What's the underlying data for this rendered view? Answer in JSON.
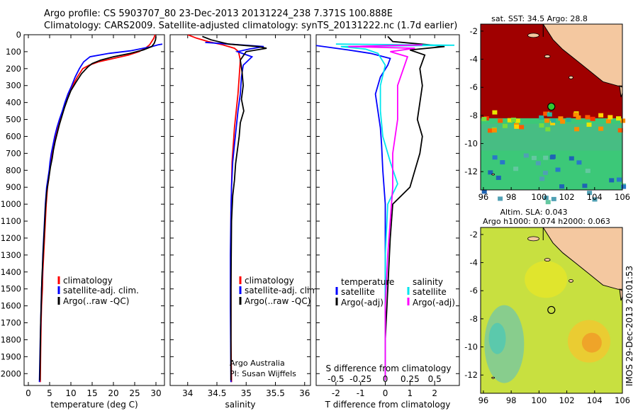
{
  "title": {
    "line1": "Argo profile: CS 5903707_80 23-Dec-2013 20131224_238 7.371S 100.888E",
    "line2": "Climatology: CARS2009. Satellite-adjusted climatology: synTS_20131222.nc (1.7d earlier)"
  },
  "colors": {
    "climatology": "#ff0000",
    "satellite": "#0000ff",
    "argo": "#000000",
    "satellite_diff": "#00e5ee",
    "argo_diff_salinity": "#ff00ff",
    "land": "#f4c8a0",
    "sst_warm": "#a00000",
    "sla_field": "#c8e040"
  },
  "side_text": "IMOS 29-Dec-2013 20:01:53",
  "chart_data": [
    {
      "id": "temperature",
      "type": "line",
      "xlabel": "temperature (deg C)",
      "ylabel": "",
      "xlim": [
        -1,
        32
      ],
      "ylim": [
        2070,
        0
      ],
      "xticks": [
        0,
        5,
        10,
        15,
        20,
        25,
        30
      ],
      "yticks": [
        0,
        100,
        200,
        300,
        400,
        500,
        600,
        700,
        800,
        900,
        1000,
        1100,
        1200,
        1300,
        1400,
        1500,
        1600,
        1700,
        1800,
        1900,
        2000
      ],
      "legend": [
        "climatology",
        "satellite-adj. clim.",
        "Argo(..raw -QC)"
      ],
      "legend_position": "lower-center",
      "series": [
        {
          "name": "climatology",
          "color": "#ff0000",
          "x": [
            29.8,
            29.5,
            29.0,
            28.5,
            27.5,
            26.0,
            23.5,
            20.0,
            16.5,
            14.3,
            12.8,
            11.5,
            10.4,
            9.5,
            8.8,
            8.2,
            7.5,
            6.9,
            6.4,
            6.0,
            5.6,
            5.3,
            5.0,
            4.8,
            4.5,
            4.2,
            4.0,
            3.8,
            3.6,
            3.4,
            3.3,
            3.1,
            3.0,
            2.9,
            2.8
          ],
          "y": [
            0,
            20,
            40,
            60,
            80,
            100,
            120,
            140,
            160,
            180,
            200,
            250,
            300,
            350,
            400,
            450,
            500,
            550,
            600,
            650,
            700,
            750,
            800,
            850,
            900,
            1000,
            1100,
            1200,
            1300,
            1400,
            1500,
            1600,
            1700,
            1850,
            2050
          ]
        },
        {
          "name": "satellite-adj. clim.",
          "color": "#0000ff",
          "x": [
            31.5,
            30.5,
            29.0,
            27.0,
            24.0,
            19.0,
            14.5,
            13.0,
            12.0,
            11.0,
            10.2,
            9.3,
            8.6,
            8.0,
            7.3,
            6.7,
            6.2,
            5.8,
            5.4,
            5.1,
            4.9,
            4.6,
            4.3,
            4.0,
            3.8,
            3.6,
            3.4,
            3.3,
            3.1,
            3.0,
            2.8,
            2.6
          ],
          "y": [
            55,
            60,
            70,
            80,
            95,
            110,
            130,
            160,
            200,
            250,
            300,
            350,
            400,
            450,
            500,
            550,
            600,
            650,
            700,
            750,
            800,
            850,
            900,
            1000,
            1100,
            1200,
            1300,
            1400,
            1500,
            1600,
            1800,
            2050
          ]
        },
        {
          "name": "Argo(..raw -QC)",
          "color": "#000000",
          "x": [
            30.0,
            29.9,
            29.6,
            29.0,
            27.0,
            24.0,
            20.0,
            17.0,
            15.0,
            14.0,
            12.5,
            11.2,
            10.0,
            9.2,
            8.5,
            7.9,
            7.3,
            6.8,
            6.3,
            5.9,
            5.6,
            5.2,
            4.9,
            4.6,
            4.3,
            4.0,
            3.8,
            3.6,
            3.4,
            3.2,
            3.1,
            2.9,
            2.7
          ],
          "y": [
            10,
            30,
            50,
            70,
            90,
            110,
            130,
            150,
            170,
            190,
            230,
            280,
            330,
            380,
            430,
            480,
            530,
            580,
            630,
            680,
            730,
            780,
            830,
            880,
            930,
            1030,
            1130,
            1230,
            1330,
            1430,
            1530,
            1700,
            2040
          ]
        }
      ]
    },
    {
      "id": "salinity",
      "type": "line",
      "xlabel": "salinity",
      "ylabel": "",
      "xlim": [
        33.7,
        36.1
      ],
      "ylim": [
        2070,
        0
      ],
      "xticks": [
        34,
        34.5,
        35,
        35.5,
        36
      ],
      "legend": [
        "climatology",
        "satellite-adj. clim.",
        "Argo(..raw -QC)"
      ],
      "legend_position": "lower-right",
      "annotations": [
        "Argo Australia",
        "PI: Susan Wijffels"
      ],
      "series": [
        {
          "name": "climatology",
          "color": "#ff0000",
          "x": [
            34.0,
            34.15,
            34.35,
            34.6,
            34.8,
            34.87,
            34.9,
            34.88,
            34.86,
            34.83,
            34.8,
            34.78,
            34.76,
            34.75,
            34.74,
            34.74,
            34.74,
            34.74,
            34.75
          ],
          "y": [
            0,
            20,
            40,
            60,
            80,
            100,
            150,
            250,
            350,
            450,
            550,
            650,
            750,
            900,
            1050,
            1250,
            1500,
            1800,
            2050
          ]
        },
        {
          "name": "satellite-adj. clim.",
          "color": "#0000ff",
          "x": [
            34.3,
            34.7,
            35.3,
            35.05,
            34.85,
            35.1,
            34.95,
            34.92,
            34.9,
            34.86,
            34.83,
            34.8,
            34.77,
            34.75,
            34.74,
            34.73,
            34.73,
            34.74
          ],
          "y": [
            45,
            55,
            70,
            85,
            100,
            130,
            180,
            250,
            350,
            450,
            550,
            650,
            750,
            900,
            1050,
            1300,
            1600,
            2050
          ]
        },
        {
          "name": "Argo(..raw -QC)",
          "color": "#000000",
          "x": [
            34.25,
            34.4,
            34.7,
            35.2,
            35.35,
            35.0,
            34.9,
            34.93,
            34.95,
            34.92,
            34.96,
            34.9,
            34.88,
            34.85,
            34.82,
            34.8,
            34.77,
            34.75,
            34.74,
            34.74
          ],
          "y": [
            10,
            30,
            55,
            70,
            80,
            100,
            150,
            220,
            300,
            380,
            450,
            520,
            600,
            680,
            760,
            860,
            950,
            1100,
            1500,
            2040
          ]
        }
      ]
    },
    {
      "id": "difference",
      "type": "line",
      "xlabel": "T difference from climatology",
      "xlabel_top": "S difference from climatology",
      "ylabel": "",
      "xlim": [
        -2.8,
        3.0
      ],
      "ylim": [
        2070,
        0
      ],
      "xticks": [
        -2,
        -1,
        0,
        1,
        2
      ],
      "xticks_top": [
        "-0.5",
        "-0.25",
        "0",
        "0.25",
        "0.5"
      ],
      "legend": [
        "temperature",
        "satellite",
        "Argo(-adj)",
        "salinity",
        "satellite",
        "Argo(-adj)"
      ],
      "legend_position": "lower-center",
      "series": [
        {
          "name": "satellite",
          "color": "#0000ff",
          "x": [
            -3.0,
            -1.5,
            -0.6,
            0.2,
            0.1,
            -0.2,
            -0.4,
            -0.3,
            -0.2,
            -0.15,
            -0.1,
            0.0,
            0.0,
            0.0,
            0.0
          ],
          "y": [
            60,
            90,
            110,
            140,
            180,
            250,
            350,
            450,
            550,
            650,
            800,
            1000,
            1300,
            1600,
            2040
          ]
        },
        {
          "name": "Argo(-adj)",
          "color": "#000000",
          "x": [
            0.1,
            0.3,
            1.8,
            2.4,
            1.0,
            1.6,
            1.4,
            1.5,
            1.4,
            1.3,
            1.5,
            1.4,
            1.2,
            1.0,
            0.3,
            0.2,
            0.1,
            0.0,
            0.0
          ],
          "y": [
            10,
            40,
            60,
            70,
            90,
            120,
            200,
            300,
            400,
            500,
            600,
            700,
            800,
            900,
            1000,
            1200,
            1500,
            1800,
            2040
          ]
        },
        {
          "name": "satellite",
          "color": "#00e5ee",
          "x": [
            -2.0,
            2.8,
            -1.8,
            -0.8,
            -0.3,
            0.0,
            -0.2,
            -0.2,
            -0.1,
            0.2,
            0.5,
            0.1,
            0.0,
            0.0,
            0.0
          ],
          "y": [
            55,
            62,
            70,
            85,
            110,
            180,
            300,
            450,
            600,
            750,
            880,
            1000,
            1300,
            1600,
            2040
          ]
        },
        {
          "name": "Argo(-adj)",
          "color": "#ff00ff",
          "x": [
            1.5,
            -1.5,
            1.2,
            0.2,
            0.9,
            0.5,
            0.5,
            0.3,
            0.3,
            0.2,
            0.1,
            0.0,
            0.0
          ],
          "y": [
            60,
            70,
            80,
            100,
            130,
            300,
            500,
            700,
            900,
            1100,
            1300,
            1600,
            2040
          ]
        }
      ]
    },
    {
      "id": "sst_map",
      "type": "heatmap",
      "title": "sat. SST: 34.5  Argo: 28.8",
      "xlim": [
        95.8,
        106
      ],
      "ylim": [
        -13.3,
        -1.5
      ],
      "xticks": [
        96,
        98,
        100,
        102,
        104,
        106
      ],
      "yticks": [
        -2,
        -4,
        -6,
        -8,
        -10,
        -12
      ],
      "marker": {
        "lon": 100.888,
        "lat": -7.371
      }
    },
    {
      "id": "sla_map",
      "type": "heatmap",
      "title": "Altim. SLA: 0.043",
      "subtitle": "Argo h1000: 0.074  h2000: 0.063",
      "xlim": [
        95.8,
        106
      ],
      "ylim": [
        -13.3,
        -1.5
      ],
      "xticks": [
        96,
        98,
        100,
        102,
        104,
        106
      ],
      "yticks": [
        -2,
        -4,
        -6,
        -8,
        -10,
        -12
      ],
      "marker": {
        "lon": 100.888,
        "lat": -7.371
      }
    }
  ]
}
